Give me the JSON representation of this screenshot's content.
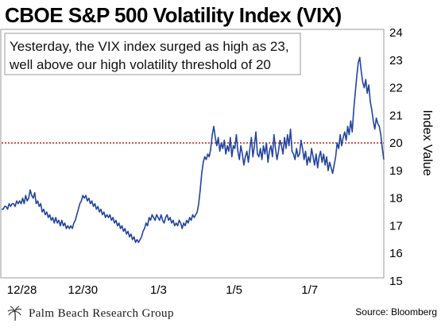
{
  "header": {
    "title": "CBOE S&P 500 Volatility Index (VIX)"
  },
  "annotation": {
    "line1": "Yesterday, the VIX index surged as high as 23,",
    "line2": "well above our high volatility threshold of 20"
  },
  "footer": {
    "brand": "Palm Beach Research Group",
    "source": "Source: Bloomberg"
  },
  "colors": {
    "series": "#2244a0",
    "threshold": "#cc0000",
    "annotation_border": "#9a9a9a",
    "frame": "#9a9a9a"
  },
  "chart_data": {
    "type": "line",
    "title": "CBOE S&P 500 Volatility Index (VIX)",
    "ylabel": "Index Value",
    "xlabel": "",
    "ylim": [
      15,
      24
    ],
    "yticks": [
      15,
      16,
      17,
      18,
      19,
      20,
      21,
      22,
      23,
      24
    ],
    "grid": false,
    "x_tick_labels": [
      {
        "label": "12/28",
        "x": 1
      },
      {
        "label": "12/30",
        "x": 57
      },
      {
        "label": "1/3",
        "x": 110
      },
      {
        "label": "1/5",
        "x": 163
      },
      {
        "label": "1/7",
        "x": 216
      }
    ],
    "x_range": [
      0,
      268
    ],
    "threshold": {
      "value": 20,
      "style": "dotted",
      "color": "#cc0000"
    },
    "series": [
      {
        "values": [
          17.6,
          17.6,
          17.7,
          17.7,
          17.6,
          17.8,
          17.7,
          17.8,
          17.8,
          17.7,
          17.9,
          17.8,
          17.9,
          17.8,
          18.0,
          17.8,
          18.1,
          17.9,
          18.0,
          18.3,
          18.1,
          18.0,
          18.2,
          17.8,
          17.9,
          17.7,
          17.8,
          17.5,
          17.6,
          17.4,
          17.5,
          17.3,
          17.4,
          17.2,
          17.3,
          17.1,
          17.3,
          17.1,
          17.2,
          17.0,
          17.2,
          17.0,
          17.1,
          16.9,
          17.0,
          16.9,
          17.0,
          16.9,
          17.1,
          17.2,
          17.4,
          17.6,
          17.8,
          17.9,
          18.1,
          18.0,
          18.1,
          17.9,
          18.0,
          17.8,
          17.9,
          17.7,
          17.8,
          17.6,
          17.7,
          17.5,
          17.6,
          17.4,
          17.5,
          17.3,
          17.4,
          17.3,
          17.4,
          17.2,
          17.3,
          17.1,
          17.2,
          17.0,
          17.1,
          16.9,
          17.0,
          16.8,
          16.9,
          16.7,
          16.8,
          16.6,
          16.7,
          16.5,
          16.6,
          16.4,
          16.5,
          16.4,
          16.5,
          16.6,
          16.8,
          16.9,
          17.1,
          17.0,
          17.3,
          17.2,
          17.4,
          17.3,
          17.2,
          17.4,
          17.3,
          17.2,
          17.4,
          17.2,
          17.1,
          17.3,
          17.4,
          17.2,
          17.3,
          17.1,
          17.2,
          17.0,
          17.1,
          17.0,
          17.2,
          17.1,
          16.9,
          17.1,
          17.0,
          17.2,
          17.1,
          17.3,
          17.2,
          17.4,
          17.3,
          17.4,
          17.5,
          17.8,
          18.3,
          18.9,
          19.3,
          19.5,
          19.4,
          19.6,
          19.5,
          19.8,
          20.3,
          20.6,
          20.2,
          19.9,
          20.2,
          19.7,
          20.0,
          19.8,
          20.1,
          19.6,
          19.9,
          19.7,
          20.2,
          19.5,
          19.9,
          19.8,
          20.3,
          19.7,
          19.4,
          19.9,
          19.6,
          19.2,
          19.5,
          19.7,
          19.3,
          19.8,
          20.2,
          19.5,
          19.9,
          20.4,
          19.6,
          19.5,
          19.8,
          19.4,
          19.9,
          19.6,
          20.0,
          19.3,
          19.7,
          19.9,
          19.5,
          20.3,
          19.8,
          19.4,
          19.7,
          20.1,
          19.9,
          19.6,
          20.2,
          19.8,
          20.3,
          19.9,
          20.5,
          19.7,
          19.6,
          19.4,
          19.8,
          19.5,
          19.6,
          20.1,
          19.8,
          19.4,
          19.7,
          19.2,
          19.5,
          19.3,
          19.8,
          19.5,
          19.2,
          19.6,
          19.1,
          19.5,
          19.7,
          19.3,
          19.6,
          19.2,
          19.5,
          19.0,
          19.3,
          19.1,
          18.9,
          19.2,
          19.5,
          20.0,
          19.8,
          20.3,
          19.9,
          20.2,
          20.4,
          20.1,
          20.6,
          20.3,
          20.8,
          20.4,
          21.2,
          21.8,
          22.4,
          22.9,
          23.1,
          22.6,
          22.2,
          22.0,
          22.3,
          21.8,
          22.1,
          21.5,
          21.2,
          20.8,
          20.5,
          20.9,
          20.7,
          20.6,
          20.3,
          19.8,
          19.4
        ]
      }
    ]
  }
}
